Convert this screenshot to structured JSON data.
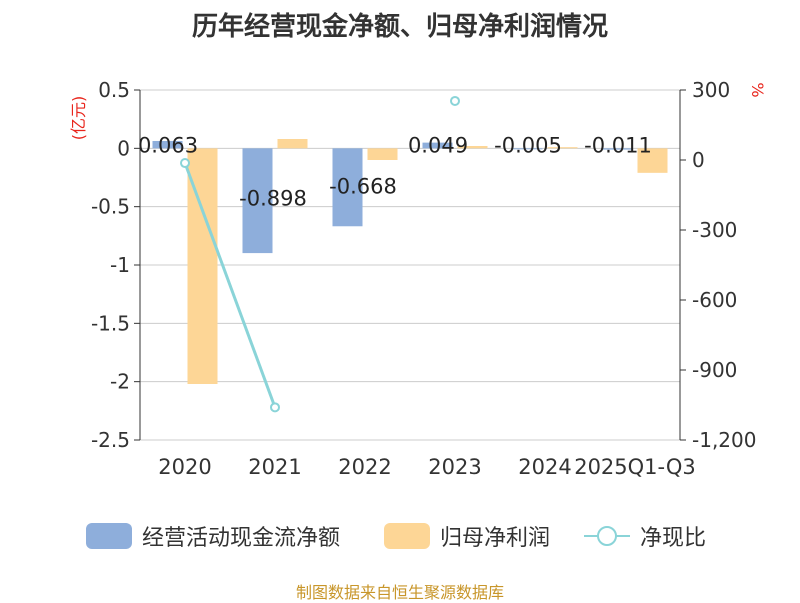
{
  "chart_data": {
    "type": "bar",
    "title": "历年经营现金净额、归母净利润情况",
    "categories": [
      "2020",
      "2021",
      "2022",
      "2023",
      "2024",
      "2025Q1-Q3"
    ],
    "left_axis": {
      "label": "(亿元)",
      "ylim": [
        -2.5,
        0.5
      ],
      "ticks": [
        "0.5",
        "0",
        "-0.5",
        "-1",
        "-1.5",
        "-2",
        "-2.5"
      ],
      "tick_values": [
        0.5,
        0,
        -0.5,
        -1,
        -1.5,
        -2,
        -2.5
      ]
    },
    "right_axis": {
      "label": "%",
      "ylim": [
        -1200,
        300
      ],
      "ticks": [
        "300",
        "0",
        "-300",
        "-600",
        "-900",
        "-1,200"
      ],
      "tick_values": [
        300,
        0,
        -300,
        -600,
        -900,
        -1200
      ]
    },
    "grid": true,
    "legend_position": "bottom",
    "series": [
      {
        "name": "经营活动现金流净额",
        "type": "bar",
        "axis": "left",
        "color": "#8eaedb",
        "values": [
          0.063,
          -0.898,
          -0.668,
          0.049,
          -0.005,
          -0.011
        ],
        "data_labels": [
          "0.063",
          "-0.898",
          "-0.668",
          "0.049",
          "-0.005",
          "-0.011"
        ]
      },
      {
        "name": "归母净利润",
        "type": "bar",
        "axis": "left",
        "color": "#fdd696",
        "values": [
          -2.02,
          0.08,
          -0.1,
          0.02,
          0.01,
          -0.21
        ]
      },
      {
        "name": "净现比",
        "type": "line",
        "axis": "right",
        "color": "#8ad4d8",
        "values": [
          -13,
          -1060,
          null,
          253,
          null,
          null
        ]
      }
    ]
  },
  "footer": {
    "source": "制图数据来自恒生聚源数据库"
  }
}
